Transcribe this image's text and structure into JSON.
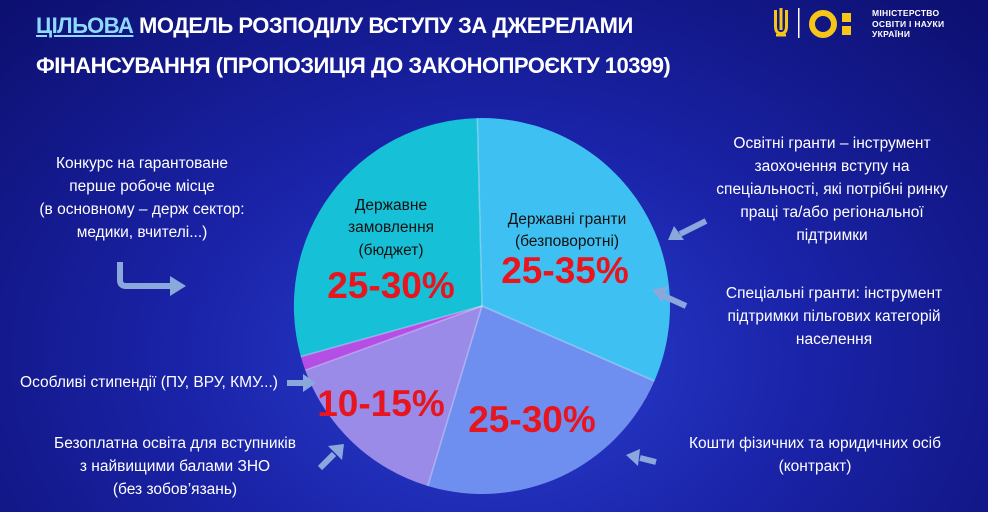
{
  "title": {
    "accent": "ЦІЛЬОВА",
    "line1_rest": " МОДЕЛЬ РОЗПОДІЛУ ВСТУПУ ЗА ДЖЕРЕЛАМИ",
    "line2": "ФІНАНСУВАННЯ (ПРОПОЗИЦІЯ ДО ЗАКОНОПРОЄКТУ 10399)"
  },
  "logo": {
    "ministry_text": "МІНІСТЕРСТВО\nОСВІТИ І НАУКИ\nУКРАЇНИ",
    "emblem_icon": "trident-icon",
    "brand_icon": "mon-logo-icon",
    "accent_color": "#f5c518"
  },
  "segments": {
    "state_order": {
      "label1": "Державне",
      "label2": "замовлення",
      "label3": "(бюджет)",
      "pct": "25-30%",
      "color": "#16c0d6"
    },
    "state_grants": {
      "label1": "Державні гранти",
      "label2": "(безповоротні)",
      "pct": "25-35%",
      "color": "#3fc0f2"
    },
    "contract": {
      "pct": "25-30%",
      "color": "#6f8ff0"
    },
    "free": {
      "pct": "10-15%",
      "color": "#9a8be8"
    },
    "stipends": {
      "color": "#b44fe6"
    }
  },
  "notes": {
    "guaranteed": "Конкурс на гарантоване\nперше робоче місце\n(в основному – держ сектор:\nмедики, вчителі...)",
    "grants": "Освітні гранти – інструмент\nзаохочення вступу на\nспеціальності, які потрібні ринку\nпраці та/або регіональної\nпідтримки",
    "special": "Спеціальні гранти: інструмент\nпідтримки пільгових категорій\nнаселення",
    "stipends": "Особливі стипендії (ПУ, ВРУ, КМУ...)",
    "free": "Безоплатна освіта для вступників\nз найвищими балами ЗНО\n(без зобов’язань)",
    "contract": "Кошти фізичних та юридичних осіб\n(контракт)"
  }
}
